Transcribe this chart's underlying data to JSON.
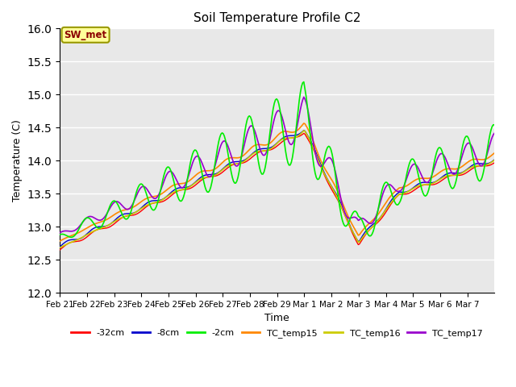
{
  "title": "Soil Temperature Profile C2",
  "xlabel": "Time",
  "ylabel": "Temperature (C)",
  "ylim": [
    12.0,
    16.0
  ],
  "yticks": [
    12.0,
    12.5,
    13.0,
    13.5,
    14.0,
    14.5,
    15.0,
    15.5,
    16.0
  ],
  "x_labels": [
    "Feb 21",
    "Feb 22",
    "Feb 23",
    "Feb 24",
    "Feb 25",
    "Feb 26",
    "Feb 27",
    "Feb 28",
    "Feb 29",
    "Mar 1",
    "Mar 2",
    "Mar 3",
    "Mar 4",
    "Mar 5",
    "Mar 6",
    "Mar 7"
  ],
  "legend_label": "SW_met",
  "series": {
    "-32cm": {
      "color": "#ff0000",
      "lw": 1.0
    },
    "-8cm": {
      "color": "#0000cc",
      "lw": 1.0
    },
    "-2cm": {
      "color": "#00ee00",
      "lw": 1.2
    },
    "TC_temp15": {
      "color": "#ff8800",
      "lw": 1.2
    },
    "TC_temp16": {
      "color": "#cccc00",
      "lw": 1.2
    },
    "TC_temp17": {
      "color": "#9900cc",
      "lw": 1.2
    }
  },
  "plot_bg": "#e8e8e8",
  "fig_bg": "#ffffff",
  "grid_color": "#ffffff",
  "grid_lw": 1.0
}
